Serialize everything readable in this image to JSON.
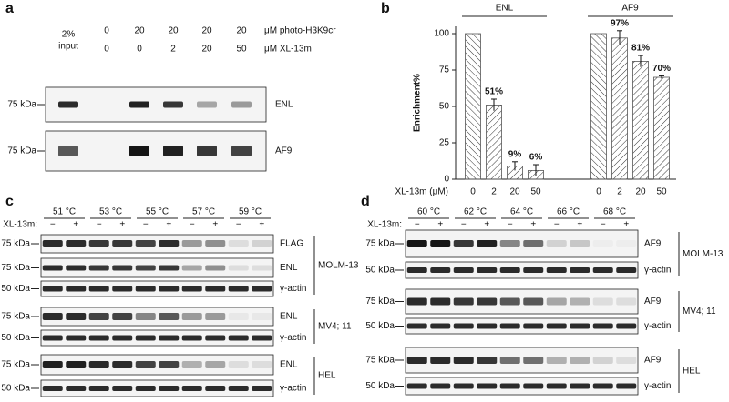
{
  "panel_a": {
    "letter": "a",
    "input_label": [
      "2%",
      "input"
    ],
    "photo_h3k9cr": [
      "0",
      "20",
      "20",
      "20",
      "20"
    ],
    "photo_h3k9cr_label": "μM photo-H3K9cr",
    "xl13m": [
      "0",
      "0",
      "2",
      "20",
      "50"
    ],
    "xl13m_label": "μM XL-13m",
    "blots": [
      {
        "marker": "75 kDa",
        "label": "ENL"
      },
      {
        "marker": "75 kDa",
        "label": "AF9"
      }
    ]
  },
  "chart_data": {
    "type": "bar",
    "letter": "b",
    "y_label": "Enrichment%",
    "x_label": "XL-13m (μM)",
    "categories": [
      "0",
      "2",
      "20",
      "50"
    ],
    "series": [
      {
        "name": "ENL",
        "color": "#555555",
        "values": [
          100,
          51,
          9,
          6
        ],
        "errors": [
          0,
          4,
          3,
          4
        ],
        "value_labels": [
          null,
          "51%",
          "9%",
          "6%"
        ]
      },
      {
        "name": "AF9",
        "color": "#555555",
        "values": [
          100,
          97,
          81,
          70
        ],
        "errors": [
          0,
          5,
          4,
          1
        ],
        "value_labels": [
          null,
          "97%",
          "81%",
          "70%"
        ]
      }
    ],
    "ylim": [
      0,
      105
    ],
    "yticks": [
      0,
      25,
      50,
      75,
      100
    ]
  },
  "panel_c": {
    "letter": "c",
    "treatment_label": "XL-13m:",
    "signs": [
      "−",
      "+"
    ],
    "temperatures": [
      "51 °C",
      "53 °C",
      "55 °C",
      "57 °C",
      "59 °C"
    ],
    "groups": [
      {
        "cell_line": "MOLM-13",
        "blots": [
          {
            "marker": "75 kDa",
            "label": "FLAG"
          },
          {
            "marker": "75 kDa",
            "label": "ENL"
          },
          {
            "marker": "50 kDa",
            "label": "γ-actin"
          }
        ]
      },
      {
        "cell_line": "MV4; 11",
        "blots": [
          {
            "marker": "75 kDa",
            "label": "ENL"
          },
          {
            "marker": "50 kDa",
            "label": "γ-actin"
          }
        ]
      },
      {
        "cell_line": "HEL",
        "blots": [
          {
            "marker": "75 kDa",
            "label": "ENL"
          },
          {
            "marker": "50 kDa",
            "label": "γ-actin"
          }
        ]
      }
    ]
  },
  "panel_d": {
    "letter": "d",
    "treatment_label": "XL-13m:",
    "signs": [
      "−",
      "+"
    ],
    "temperatures": [
      "60 °C",
      "62 °C",
      "64 °C",
      "66 °C",
      "68 °C"
    ],
    "groups": [
      {
        "cell_line": "MOLM-13",
        "blots": [
          {
            "marker": "75 kDa",
            "label": "AF9"
          },
          {
            "marker": "50 kDa",
            "label": "γ-actin"
          }
        ]
      },
      {
        "cell_line": "MV4; 11",
        "blots": [
          {
            "marker": "75 kDa",
            "label": "AF9"
          },
          {
            "marker": "50 kDa",
            "label": "γ-actin"
          }
        ]
      },
      {
        "cell_line": "HEL",
        "blots": [
          {
            "marker": "75 kDa",
            "label": "AF9"
          },
          {
            "marker": "50 kDa",
            "label": "γ-actin"
          }
        ]
      }
    ]
  }
}
